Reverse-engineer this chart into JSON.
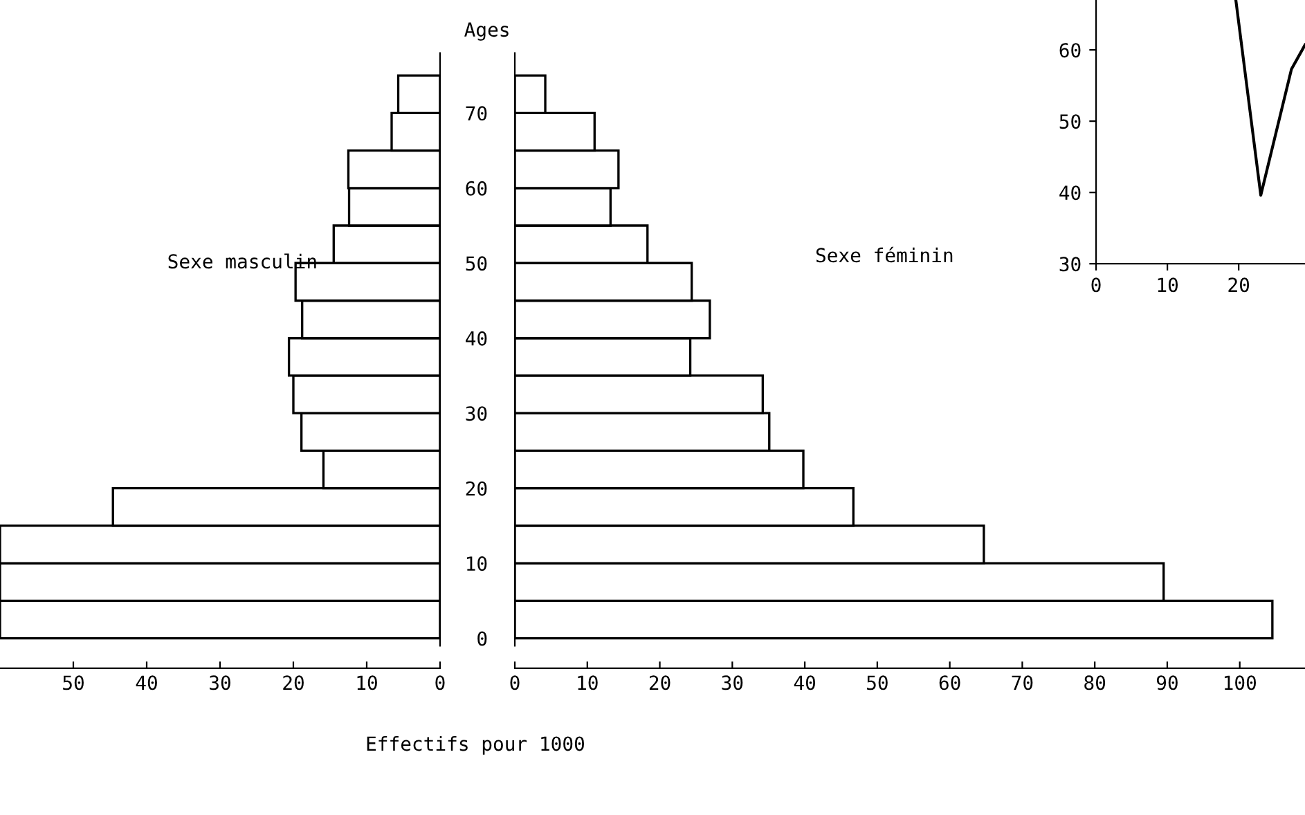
{
  "chart_data": [
    {
      "type": "bar",
      "orientation": "horizontal",
      "x": [
        2.5,
        7.5,
        12.5,
        17.5,
        22.5,
        27.5,
        32.5,
        37.5,
        42.5,
        47.5,
        52.5,
        57.5,
        62.5,
        67.5,
        72.5
      ],
      "values": [
        60,
        60,
        60,
        44.6,
        15.9,
        18.9,
        20.0,
        20.6,
        18.8,
        19.7,
        14.5,
        12.4,
        12.5,
        6.6,
        5.7
      ],
      "color": "#ffffff",
      "xlim": [
        60,
        0
      ],
      "xticks": [
        50,
        40,
        30,
        20,
        10,
        0
      ],
      "ylim": [
        -4,
        78
      ],
      "tick_labels": "x",
      "annotations": [
        "Sexe masculin"
      ]
    },
    {
      "type": "bar",
      "orientation": "horizontal",
      "x": [
        2.5,
        7.5,
        12.5,
        17.5,
        22.5,
        27.5,
        32.5,
        37.5,
        42.5,
        47.5,
        52.5,
        57.5,
        62.5,
        67.5,
        72.5
      ],
      "values": [
        104.5,
        89.5,
        64.7,
        46.7,
        39.8,
        35.1,
        34.2,
        24.2,
        26.9,
        24.4,
        18.3,
        13.2,
        14.3,
        11.0,
        4.2
      ],
      "color": "#ffffff",
      "xlim": [
        0,
        109
      ],
      "xticks": [
        0,
        10,
        20,
        30,
        40,
        50,
        60,
        70,
        80,
        90,
        100
      ],
      "ylim": [
        -4,
        78
      ],
      "yticks": [
        0,
        10,
        20,
        30,
        40,
        50,
        60,
        70
      ],
      "ylabel": "Ages",
      "xlabel": "Effectifs pour 1000",
      "annotations": [
        "Sexe féminin"
      ]
    },
    {
      "type": "line",
      "x": [
        19.6,
        23.1,
        27.4,
        29.3
      ],
      "values": [
        67,
        39.6,
        57.3,
        60.7
      ],
      "color": "#000000",
      "xlim": [
        0,
        29.3
      ],
      "ylim": [
        30,
        67
      ],
      "xticks": [
        0,
        10,
        20
      ],
      "yticks": [
        30,
        40,
        50,
        60
      ]
    }
  ]
}
